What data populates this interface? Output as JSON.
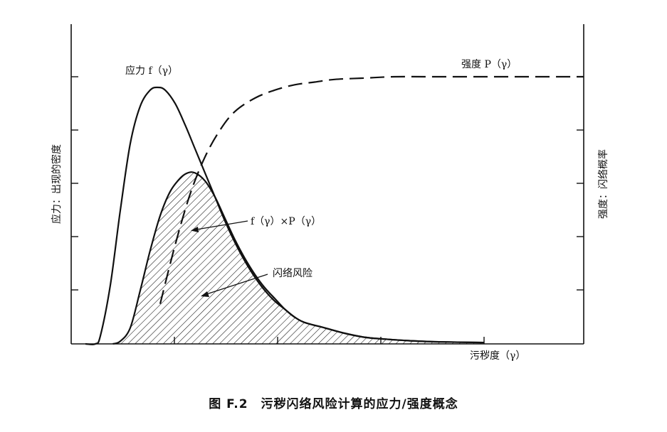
{
  "chart_data": {
    "type": "line",
    "title": "",
    "xlabel": "污秽度（γ）",
    "ylabel_left": "应力：出现的密度",
    "ylabel_right": "强度：闪络概率",
    "xlim": [
      0,
      1
    ],
    "ylim": [
      0,
      1
    ],
    "grid": false,
    "series": [
      {
        "name": "应力 f（γ）",
        "style": "solid",
        "x": [
          0.0,
          0.02,
          0.03,
          0.05,
          0.07,
          0.09,
          0.11,
          0.13,
          0.145,
          0.16,
          0.18,
          0.2,
          0.22,
          0.24,
          0.26,
          0.28,
          0.3,
          0.32,
          0.34,
          0.36,
          0.38,
          0.4,
          0.42,
          0.44,
          0.48,
          0.52,
          0.56,
          0.6,
          0.65,
          0.7,
          0.8
        ],
        "y": [
          0.0,
          0.0,
          0.03,
          0.22,
          0.5,
          0.75,
          0.89,
          0.95,
          0.96,
          0.95,
          0.9,
          0.82,
          0.73,
          0.64,
          0.55,
          0.46,
          0.38,
          0.31,
          0.25,
          0.2,
          0.16,
          0.13,
          0.1,
          0.08,
          0.06,
          0.04,
          0.025,
          0.018,
          0.012,
          0.008,
          0.005
        ]
      },
      {
        "name": "强度 P（γ）",
        "style": "dashed",
        "x": [
          0.15,
          0.18,
          0.21,
          0.24,
          0.27,
          0.3,
          0.34,
          0.38,
          0.42,
          0.46,
          0.5,
          0.56,
          0.62,
          0.7,
          0.8,
          0.9,
          1.0
        ],
        "y": [
          0.15,
          0.37,
          0.56,
          0.7,
          0.8,
          0.87,
          0.92,
          0.95,
          0.97,
          0.98,
          0.99,
          0.995,
          1.0,
          1.0,
          1.0,
          1.0,
          1.0
        ]
      },
      {
        "name": "f（γ）×P（γ）",
        "style": "solid-hatched",
        "x": [
          0.055,
          0.07,
          0.09,
          0.11,
          0.13,
          0.15,
          0.17,
          0.19,
          0.205,
          0.22,
          0.24,
          0.26,
          0.28,
          0.3,
          0.32,
          0.34,
          0.36,
          0.38,
          0.4,
          0.42,
          0.44,
          0.48,
          0.52,
          0.56,
          0.6,
          0.65,
          0.7,
          0.8
        ],
        "y": [
          0.0,
          0.01,
          0.06,
          0.2,
          0.35,
          0.48,
          0.57,
          0.62,
          0.64,
          0.64,
          0.61,
          0.55,
          0.47,
          0.39,
          0.32,
          0.26,
          0.21,
          0.17,
          0.13,
          0.1,
          0.08,
          0.06,
          0.04,
          0.025,
          0.018,
          0.012,
          0.008,
          0.005
        ]
      }
    ],
    "annotations": [
      {
        "text": "应力 f（γ）",
        "target": "stress"
      },
      {
        "text": "强度 P（γ）",
        "target": "strength"
      },
      {
        "text": "f（γ）×P（γ）",
        "target": "product"
      },
      {
        "text": "闪络风险",
        "target": "hatched-area"
      }
    ]
  },
  "caption": {
    "figure_number": "图 F.2",
    "text": "污秽闪络风险计算的应力/强度概念"
  }
}
